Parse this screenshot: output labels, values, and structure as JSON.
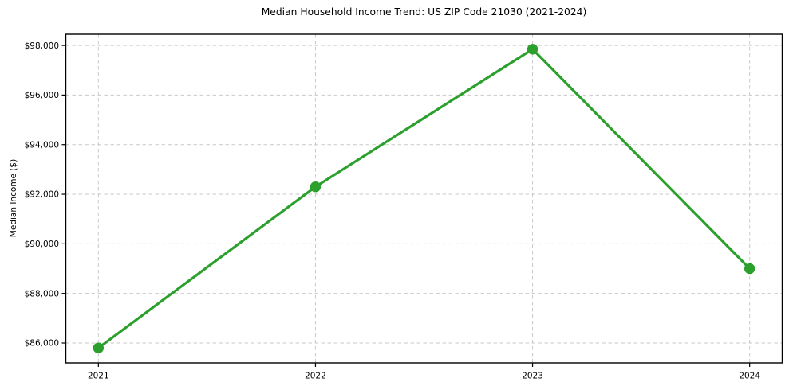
{
  "page": {
    "background_color": "#ffffff",
    "text_color": "#000000"
  },
  "chart_data": {
    "type": "line",
    "title": "Median Household Income Trend: US ZIP Code 21030 (2021-2024)",
    "xlabel": "",
    "ylabel": "Median Income ($)",
    "categories": [
      "2021",
      "2022",
      "2023",
      "2024"
    ],
    "series": [
      {
        "name": "Median Household Income",
        "values": [
          85800,
          92300,
          97850,
          89000
        ],
        "color": "#2ca02c"
      }
    ],
    "yticks": [
      86000,
      88000,
      90000,
      92000,
      94000,
      96000,
      98000
    ],
    "ytick_labels": [
      "$86,000",
      "$88,000",
      "$90,000",
      "$92,000",
      "$94,000",
      "$96,000",
      "$98,000"
    ],
    "ylim": [
      85197.5,
      98452.5
    ],
    "xlim": [
      -0.15,
      3.15
    ],
    "grid": true,
    "grid_color": "#c9c9c9",
    "axis_color": "#000000",
    "legend": "none",
    "marker": "circle",
    "marker_radius": 6.7,
    "line_width": 3.2
  }
}
